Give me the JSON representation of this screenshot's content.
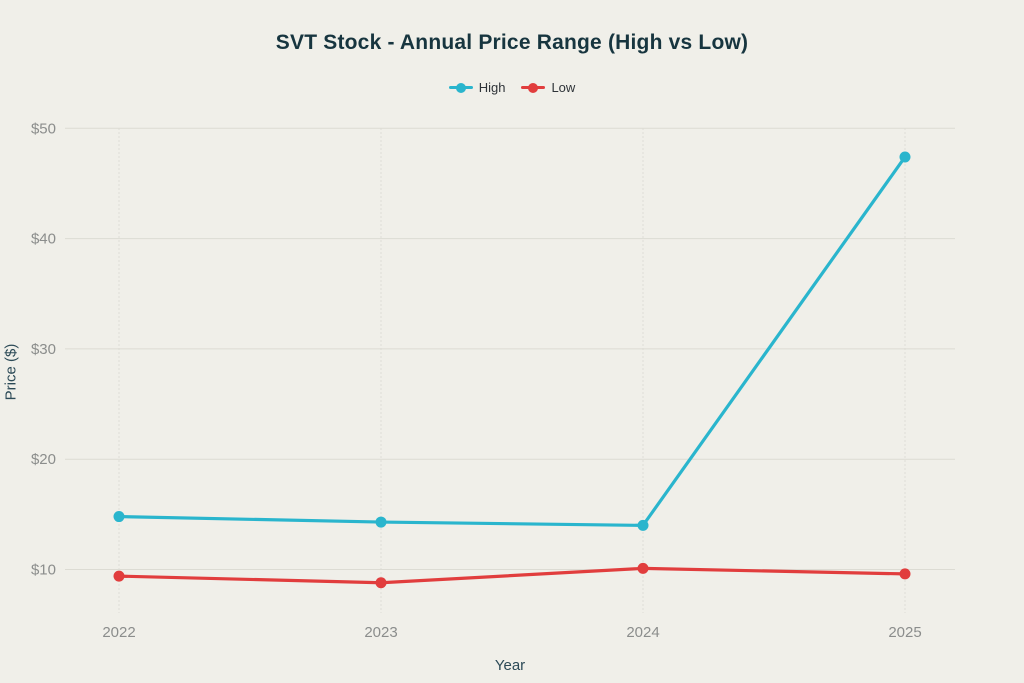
{
  "chart_data": {
    "type": "line",
    "title": "SVT Stock - Annual Price Range (High vs Low)",
    "xlabel": "Year",
    "ylabel": "Price ($)",
    "categories": [
      "2022",
      "2023",
      "2024",
      "2025"
    ],
    "series": [
      {
        "name": "High",
        "color": "#2ab5cd",
        "values": [
          14.8,
          14.3,
          14.0,
          47.4
        ]
      },
      {
        "name": "Low",
        "color": "#e13d3d",
        "values": [
          9.4,
          8.8,
          10.1,
          9.6
        ]
      }
    ],
    "yticks": [
      10,
      20,
      30,
      40,
      50
    ],
    "yticklabels": [
      "$10",
      "$20",
      "$30",
      "$40",
      "$50"
    ],
    "ylim": [
      10,
      50
    ],
    "grid": true,
    "legend_position": "top-center"
  },
  "colors": {
    "background": "#f0efe9",
    "grid_horizontal": "#dcdbd3",
    "grid_vertical": "#deddd6",
    "tick_label": "#8b8d8c",
    "axis_title": "#2c4a57",
    "title": "#17353f",
    "legend_text": "#2e3338"
  }
}
